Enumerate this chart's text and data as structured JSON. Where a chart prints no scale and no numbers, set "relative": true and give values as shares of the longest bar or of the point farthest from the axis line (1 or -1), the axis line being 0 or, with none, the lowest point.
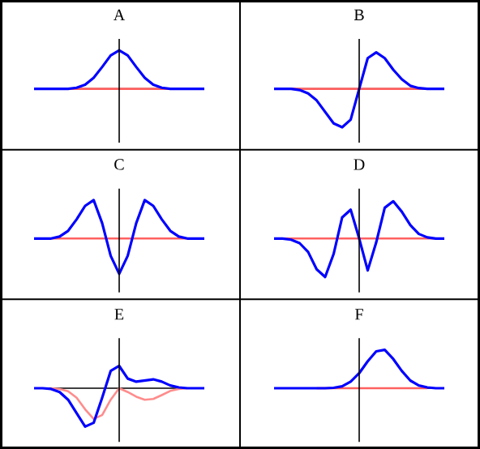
{
  "chart_data": [
    {
      "type": "line",
      "title": "A",
      "relative": true,
      "marker": "none",
      "categories": [
        null,
        null,
        null,
        null,
        null,
        null,
        null,
        null,
        null,
        null,
        null,
        null,
        null,
        null,
        null,
        null,
        null,
        null,
        null,
        null,
        null
      ],
      "series": [
        {
          "color": "#ff6060",
          "values": [
            null,
            null,
            null,
            null,
            0,
            0,
            0,
            0,
            0,
            0,
            0,
            0,
            0,
            0,
            0,
            0,
            0,
            null,
            null,
            null,
            null
          ]
        },
        {
          "color": "#0000ff",
          "values": [
            0,
            0,
            0,
            0,
            0,
            0.03,
            0.11,
            0.29,
            0.57,
            0.87,
            1,
            0.87,
            0.57,
            0.29,
            0.11,
            0.03,
            0,
            0,
            0,
            0,
            0
          ]
        }
      ]
    },
    {
      "type": "line",
      "title": "B",
      "relative": true,
      "marker": "none",
      "categories": [
        null,
        null,
        null,
        null,
        null,
        null,
        null,
        null,
        null,
        null,
        null,
        null,
        null,
        null,
        null,
        null,
        null,
        null,
        null,
        null,
        null
      ],
      "series": [
        {
          "color": "#ff6060",
          "values": [
            null,
            null,
            0,
            0,
            0,
            0,
            0,
            0,
            0,
            0,
            0,
            0,
            0,
            0,
            0,
            0,
            0,
            0,
            0,
            null,
            null
          ]
        },
        {
          "color": "#0000ff",
          "values": [
            0,
            0,
            0,
            -0.03,
            -0.12,
            -0.3,
            -0.6,
            -0.9,
            -1,
            -0.8,
            0,
            0.8,
            0.95,
            0.8,
            0.5,
            0.25,
            0.08,
            0.02,
            0,
            0,
            0
          ]
        }
      ]
    },
    {
      "type": "line",
      "title": "C",
      "relative": true,
      "marker": "none",
      "categories": [
        null,
        null,
        null,
        null,
        null,
        null,
        null,
        null,
        null,
        null,
        null,
        null,
        null,
        null,
        null,
        null,
        null,
        null,
        null,
        null,
        null
      ],
      "series": [
        {
          "color": "#ff6060",
          "values": [
            null,
            null,
            0,
            0,
            0,
            0,
            0,
            0,
            0,
            0,
            0,
            0,
            0,
            0,
            0,
            0,
            0,
            0,
            0,
            null,
            null
          ]
        },
        {
          "color": "#0000ff",
          "values": [
            0,
            0,
            0,
            0.05,
            0.2,
            0.5,
            0.85,
            1,
            0.4,
            -0.45,
            -0.92,
            -0.45,
            0.4,
            1,
            0.85,
            0.5,
            0.2,
            0.05,
            0,
            0,
            0
          ]
        }
      ]
    },
    {
      "type": "line",
      "title": "D",
      "relative": true,
      "marker": "none",
      "categories": [
        null,
        null,
        null,
        null,
        null,
        null,
        null,
        null,
        null,
        null,
        null,
        null,
        null,
        null,
        null,
        null,
        null,
        null,
        null,
        null,
        null
      ],
      "series": [
        {
          "color": "#ff6060",
          "values": [
            null,
            0,
            0,
            0,
            0,
            0,
            0,
            0,
            0,
            0,
            0,
            0,
            0,
            0,
            0,
            0,
            0,
            0,
            0,
            0,
            null
          ]
        },
        {
          "color": "#0000ff",
          "values": [
            0,
            0,
            -0.03,
            -0.12,
            -0.35,
            -0.8,
            -1,
            -0.4,
            0.55,
            0.75,
            0,
            -0.83,
            -0.1,
            0.8,
            0.97,
            0.7,
            0.35,
            0.12,
            0.03,
            0,
            0
          ]
        }
      ]
    },
    {
      "type": "line",
      "title": "E",
      "relative": true,
      "marker": "none",
      "categories": [
        null,
        null,
        null,
        null,
        null,
        null,
        null,
        null,
        null,
        null,
        null,
        null,
        null,
        null,
        null,
        null,
        null,
        null,
        null,
        null,
        null
      ],
      "series": [
        {
          "color": "#ff8c8c",
          "values": [
            null,
            null,
            0,
            -0.02,
            -0.08,
            -0.25,
            -0.55,
            -0.8,
            -0.7,
            -0.3,
            0,
            -0.1,
            -0.22,
            -0.3,
            -0.28,
            -0.18,
            -0.07,
            -0.02,
            0,
            null,
            null
          ]
        },
        {
          "color": "#0000ff",
          "values": [
            0,
            0,
            -0.02,
            -0.1,
            -0.3,
            -0.65,
            -1,
            -0.9,
            -0.25,
            0.45,
            0.58,
            0.25,
            0.17,
            0.2,
            0.23,
            0.17,
            0.07,
            0.02,
            0,
            0,
            0
          ]
        }
      ]
    },
    {
      "type": "line",
      "title": "F",
      "relative": true,
      "marker": "none",
      "categories": [
        null,
        null,
        null,
        null,
        null,
        null,
        null,
        null,
        null,
        null,
        null,
        null,
        null,
        null,
        null,
        null,
        null,
        null,
        null,
        null,
        null
      ],
      "series": [
        {
          "color": "#ff6060",
          "values": [
            null,
            null,
            null,
            null,
            null,
            0,
            0,
            0,
            0,
            0,
            0,
            0,
            0,
            0,
            0,
            0,
            0,
            0,
            0,
            null,
            null
          ]
        },
        {
          "color": "#0000ff",
          "values": [
            0,
            0,
            0,
            0,
            0,
            0,
            0,
            0.01,
            0.05,
            0.17,
            0.39,
            0.7,
            0.96,
            1,
            0.76,
            0.45,
            0.2,
            0.07,
            0.02,
            0,
            0
          ]
        }
      ]
    }
  ]
}
